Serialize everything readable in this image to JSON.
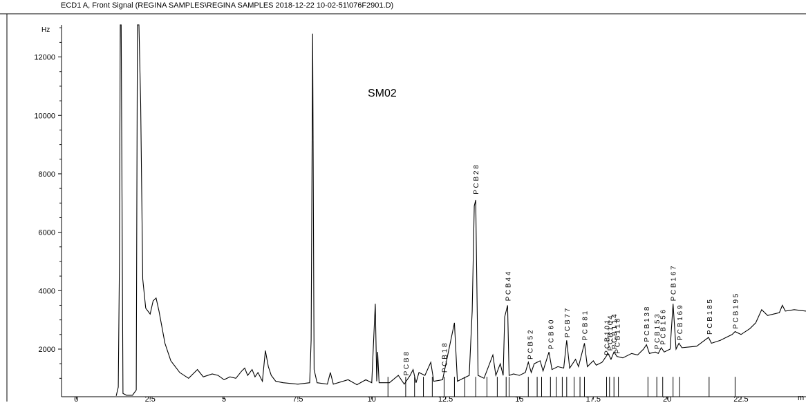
{
  "chart_data": {
    "type": "line",
    "title": "ECD1 A, Front Signal (REGINA SAMPLES\\REGINA SAMPLES 2018-12-22 10-02-51\\076F2901.D)",
    "sample_label": "SM02",
    "ylabel": "Hz",
    "xlabel": "m",
    "xlim": [
      -0.5,
      24.7
    ],
    "ylim": [
      370,
      13100
    ],
    "x_ticks": [
      0,
      2.5,
      5,
      7.5,
      10,
      12.5,
      15,
      17.5,
      20,
      22.5
    ],
    "x_tick_labels": [
      "0",
      "2.5",
      "5",
      "7.5",
      "10",
      "12.5",
      "15",
      "17.5",
      "20",
      "22.5"
    ],
    "y_ticks": [
      2000,
      4000,
      6000,
      8000,
      10000,
      12000
    ],
    "y_tick_labels": [
      "2000",
      "4000",
      "6000",
      "8000",
      "10000",
      "12000"
    ],
    "line_color": "#000000",
    "series": [
      {
        "values": [
          [
            1.35,
            400
          ],
          [
            1.42,
            700
          ],
          [
            1.46,
            5000
          ],
          [
            1.49,
            13100
          ],
          [
            1.52,
            13100
          ],
          [
            1.58,
            480
          ],
          [
            1.7,
            420
          ],
          [
            1.9,
            420
          ],
          [
            2.03,
            600
          ],
          [
            2.07,
            13100
          ],
          [
            2.12,
            13100
          ],
          [
            2.18,
            10400
          ],
          [
            2.25,
            4400
          ],
          [
            2.35,
            3400
          ],
          [
            2.5,
            3200
          ],
          [
            2.6,
            3650
          ],
          [
            2.7,
            3750
          ],
          [
            2.8,
            3300
          ],
          [
            3.0,
            2200
          ],
          [
            3.2,
            1600
          ],
          [
            3.5,
            1200
          ],
          [
            3.8,
            1000
          ],
          [
            4.0,
            1200
          ],
          [
            4.1,
            1300
          ],
          [
            4.3,
            1050
          ],
          [
            4.6,
            1150
          ],
          [
            4.8,
            1100
          ],
          [
            5.0,
            950
          ],
          [
            5.2,
            1050
          ],
          [
            5.4,
            1000
          ],
          [
            5.6,
            1250
          ],
          [
            5.7,
            1350
          ],
          [
            5.8,
            1100
          ],
          [
            5.95,
            1300
          ],
          [
            6.05,
            1050
          ],
          [
            6.15,
            1200
          ],
          [
            6.3,
            900
          ],
          [
            6.4,
            1950
          ],
          [
            6.5,
            1400
          ],
          [
            6.6,
            1100
          ],
          [
            6.75,
            900
          ],
          [
            7.0,
            850
          ],
          [
            7.5,
            800
          ],
          [
            7.9,
            850
          ],
          [
            7.95,
            2300
          ],
          [
            8.0,
            12800
          ],
          [
            8.05,
            1300
          ],
          [
            8.15,
            850
          ],
          [
            8.5,
            800
          ],
          [
            8.6,
            1200
          ],
          [
            8.7,
            800
          ],
          [
            9.2,
            950
          ],
          [
            9.5,
            780
          ],
          [
            9.8,
            950
          ],
          [
            10.0,
            850
          ],
          [
            10.07,
            2400
          ],
          [
            10.12,
            3550
          ],
          [
            10.17,
            900
          ],
          [
            10.2,
            1900
          ],
          [
            10.25,
            850
          ],
          [
            10.6,
            850
          ],
          [
            10.9,
            1100
          ],
          [
            11.1,
            800
          ],
          [
            11.3,
            1100
          ],
          [
            11.4,
            1300
          ],
          [
            11.5,
            850
          ],
          [
            11.6,
            1200
          ],
          [
            11.8,
            1100
          ],
          [
            12.0,
            1550
          ],
          [
            12.1,
            900
          ],
          [
            12.4,
            950
          ],
          [
            12.8,
            2900
          ],
          [
            12.9,
            900
          ],
          [
            13.1,
            1000
          ],
          [
            13.3,
            1100
          ],
          [
            13.4,
            3300
          ],
          [
            13.47,
            6900
          ],
          [
            13.52,
            7100
          ],
          [
            13.6,
            1100
          ],
          [
            13.8,
            1000
          ],
          [
            14.1,
            1800
          ],
          [
            14.2,
            1100
          ],
          [
            14.35,
            1500
          ],
          [
            14.45,
            1100
          ],
          [
            14.5,
            3100
          ],
          [
            14.6,
            3500
          ],
          [
            14.65,
            1100
          ],
          [
            14.8,
            1150
          ],
          [
            15.0,
            1100
          ],
          [
            15.2,
            1200
          ],
          [
            15.3,
            1550
          ],
          [
            15.4,
            1200
          ],
          [
            15.5,
            1500
          ],
          [
            15.7,
            1600
          ],
          [
            15.8,
            1250
          ],
          [
            16.0,
            1900
          ],
          [
            16.1,
            1300
          ],
          [
            16.3,
            1400
          ],
          [
            16.5,
            1350
          ],
          [
            16.6,
            2300
          ],
          [
            16.7,
            1350
          ],
          [
            16.9,
            1650
          ],
          [
            17.0,
            1400
          ],
          [
            17.2,
            2200
          ],
          [
            17.3,
            1400
          ],
          [
            17.5,
            1600
          ],
          [
            17.6,
            1450
          ],
          [
            17.8,
            1550
          ],
          [
            17.9,
            1700
          ],
          [
            18.0,
            1850
          ],
          [
            18.1,
            1650
          ],
          [
            18.2,
            1900
          ],
          [
            18.3,
            1750
          ],
          [
            18.5,
            1700
          ],
          [
            18.8,
            1850
          ],
          [
            19.0,
            1800
          ],
          [
            19.2,
            2000
          ],
          [
            19.3,
            2150
          ],
          [
            19.4,
            1850
          ],
          [
            19.6,
            1900
          ],
          [
            19.7,
            1850
          ],
          [
            19.8,
            2050
          ],
          [
            19.9,
            1900
          ],
          [
            20.1,
            2000
          ],
          [
            20.2,
            3550
          ],
          [
            20.3,
            2000
          ],
          [
            20.4,
            2200
          ],
          [
            20.5,
            2050
          ],
          [
            21.0,
            2100
          ],
          [
            21.4,
            2400
          ],
          [
            21.5,
            2200
          ],
          [
            21.8,
            2300
          ],
          [
            22.0,
            2400
          ],
          [
            22.2,
            2500
          ],
          [
            22.3,
            2600
          ],
          [
            22.5,
            2500
          ],
          [
            22.8,
            2700
          ],
          [
            23.0,
            2900
          ],
          [
            23.2,
            3350
          ],
          [
            23.4,
            3150
          ],
          [
            23.6,
            3200
          ],
          [
            23.8,
            3250
          ],
          [
            23.9,
            3500
          ],
          [
            24.0,
            3300
          ],
          [
            24.3,
            3350
          ],
          [
            24.7,
            3300
          ]
        ]
      }
    ],
    "annotations": [
      {
        "text": "P C B  8",
        "x": 11.15,
        "y_base": 1000
      },
      {
        "text": "P C B  1 8",
        "x": 12.45,
        "y_base": 1100
      },
      {
        "text": "P C B  2 8",
        "x": 13.52,
        "y_base": 7200
      },
      {
        "text": "P C B  4 4",
        "x": 14.6,
        "y_base": 3550
      },
      {
        "text": "P C B  5 2",
        "x": 15.35,
        "y_base": 1550
      },
      {
        "text": "P C B  6 0",
        "x": 16.05,
        "y_base": 1900
      },
      {
        "text": "P C B  7 7",
        "x": 16.6,
        "y_base": 2300
      },
      {
        "text": "P C B  8 1",
        "x": 17.2,
        "y_base": 2200
      },
      {
        "text": "P C B  1 0 1",
        "x": 17.95,
        "y_base": 1700
      },
      {
        "text": "P C B  1 0 4",
        "x": 18.05,
        "y_base": 1850
      },
      {
        "text": "P C B  1 1 4",
        "x": 18.2,
        "y_base": 1900
      },
      {
        "text": "P C B  1 1 8",
        "x": 18.3,
        "y_base": 1750
      },
      {
        "text": "P C B  1 3 8",
        "x": 19.3,
        "y_base": 2150
      },
      {
        "text": "P C B  1 5 3",
        "x": 19.65,
        "y_base": 1900
      },
      {
        "text": "P C B  1 5 6",
        "x": 19.85,
        "y_base": 2050
      },
      {
        "text": "P C B  1 6 7",
        "x": 20.2,
        "y_base": 3550
      },
      {
        "text": "P C B  1 6 9",
        "x": 20.42,
        "y_base": 2200
      },
      {
        "text": "P C B  1 8 5",
        "x": 21.42,
        "y_base": 2400
      },
      {
        "text": "P C B  1 9 5",
        "x": 22.3,
        "y_base": 2600
      }
    ],
    "baseline_markers": [
      10.55,
      11.15,
      11.45,
      11.75,
      12.05,
      12.45,
      12.8,
      13.15,
      13.52,
      13.9,
      14.25,
      14.55,
      14.65,
      15.3,
      15.6,
      15.75,
      16.05,
      16.25,
      16.45,
      16.6,
      16.85,
      17.05,
      17.2,
      17.95,
      18.05,
      18.2,
      18.35,
      19.35,
      19.65,
      19.85,
      20.2,
      20.42,
      21.42,
      22.3
    ],
    "grid": false,
    "legend": "none"
  }
}
